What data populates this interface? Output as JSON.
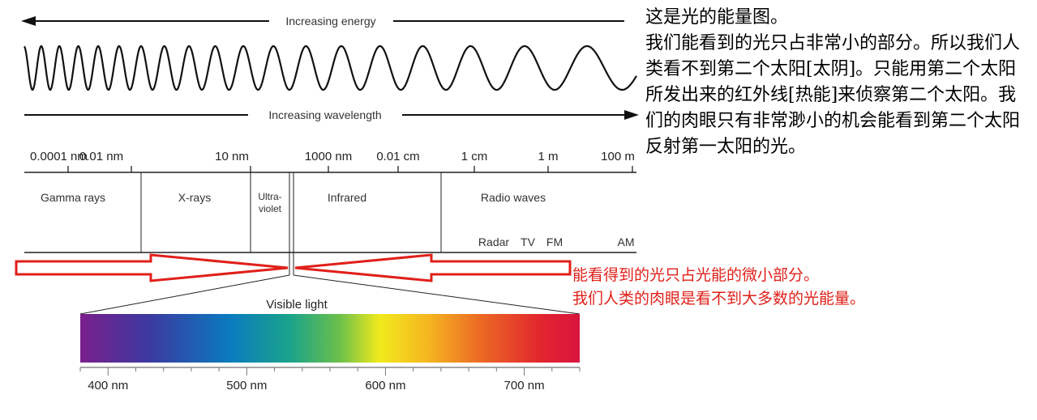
{
  "arrows": {
    "energy_label": "Increasing energy",
    "wavelength_label": "Increasing wavelength"
  },
  "scale_ticks": [
    "0.0001 nm",
    "0.01 nm",
    "10 nm",
    "1000 nm",
    "0.01 cm",
    "1 cm",
    "1 m",
    "100 m"
  ],
  "bands": {
    "gamma": "Gamma rays",
    "xrays": "X-rays",
    "uv_line1": "Ultra-",
    "uv_line2": "violet",
    "infrared": "Infrared",
    "radio": "Radio waves",
    "radar": "Radar",
    "tv": "TV",
    "fm": "FM",
    "am": "AM"
  },
  "visible": {
    "label": "Visible light",
    "ticks": [
      "400 nm",
      "500 nm",
      "600 nm",
      "700 nm"
    ],
    "gradient_colors": [
      "#7a1f8c",
      "#3b3aa0",
      "#0a7bbf",
      "#1aa38a",
      "#6cc04a",
      "#f2ea1c",
      "#f5b320",
      "#ec6a24",
      "#e3262e",
      "#d8153f"
    ]
  },
  "note": {
    "lines": [
      "这是光的能量图。",
      "我们能看到的光只占非常小的部分。所以我们人类看不到第二个太阳[太阴]。只能用第二个太阳所发出来的红外线[热能]来侦察第二个太阳。我们的肉眼只有非常渺小的机会能看到第二个太阳反射第一太阳的光。"
    ]
  },
  "red_note": {
    "line1": "能看得到的光只占光能的微小部分。",
    "line2": "我们人类的肉眼是看不到大多数的光能量。",
    "color": "#e0201a"
  }
}
